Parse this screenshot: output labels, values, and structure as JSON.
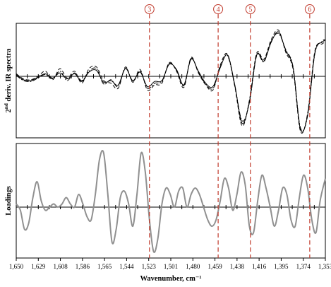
{
  "chart_data": [
    {
      "type": "line",
      "panel": "top",
      "ylabel_main": "2",
      "ylabel_sup": "nd",
      "ylabel_rest": " deriv. IR spectra",
      "x_range": [
        1353,
        1650
      ],
      "x_reversed": true,
      "zero_line": true,
      "series": [
        {
          "style": "solid",
          "color": "#000000",
          "x": [
            1650,
            1643,
            1636,
            1629,
            1622,
            1615,
            1608,
            1601,
            1594,
            1587,
            1580,
            1573,
            1566,
            1559,
            1552,
            1545,
            1538,
            1531,
            1524,
            1517,
            1510,
            1503,
            1496,
            1489,
            1482,
            1475,
            1468,
            1461,
            1454,
            1447,
            1440,
            1433,
            1426,
            1419,
            1412,
            1405,
            1398,
            1391,
            1384,
            1377,
            1370,
            1363,
            1356,
            1353
          ],
          "y": [
            0.02,
            -0.04,
            -0.05,
            -0.01,
            0.03,
            -0.02,
            0.04,
            -0.03,
            0.03,
            -0.06,
            0.05,
            0.07,
            -0.07,
            -0.05,
            -0.1,
            0.09,
            -0.05,
            0.05,
            -0.12,
            -0.06,
            -0.05,
            0.14,
            0.08,
            -0.1,
            0.2,
            0.06,
            -0.08,
            -0.12,
            0.1,
            0.25,
            -0.1,
            -0.55,
            -0.3,
            0.25,
            0.18,
            0.4,
            0.52,
            0.3,
            0.1,
            -0.62,
            -0.45,
            0.28,
            0.4,
            0.42
          ]
        },
        {
          "style": "dashed",
          "color": "#000000",
          "x": [
            1650,
            1643,
            1636,
            1629,
            1622,
            1615,
            1608,
            1601,
            1594,
            1587,
            1580,
            1573,
            1566,
            1559,
            1552,
            1545,
            1538,
            1531,
            1524,
            1517,
            1510,
            1503,
            1496,
            1489,
            1482,
            1475,
            1468,
            1461,
            1454,
            1447,
            1440,
            1433,
            1426,
            1419,
            1412,
            1405,
            1398,
            1391,
            1384,
            1377,
            1370,
            1363,
            1356,
            1353
          ],
          "y": [
            0.03,
            -0.03,
            -0.04,
            0.0,
            0.06,
            -0.04,
            0.09,
            -0.02,
            0.06,
            -0.08,
            0.09,
            0.11,
            -0.05,
            -0.08,
            -0.14,
            0.11,
            -0.07,
            0.08,
            -0.16,
            -0.1,
            -0.08,
            0.16,
            0.06,
            -0.13,
            0.22,
            0.04,
            -0.1,
            -0.16,
            0.13,
            0.26,
            -0.12,
            -0.58,
            -0.28,
            0.27,
            0.2,
            0.43,
            0.54,
            0.28,
            0.08,
            -0.64,
            -0.43,
            0.3,
            0.38,
            0.4
          ]
        },
        {
          "style": "dashdot",
          "color": "#000000",
          "x": [
            1650,
            1643,
            1636,
            1629,
            1622,
            1615,
            1608,
            1601,
            1594,
            1587,
            1580,
            1573,
            1566,
            1559,
            1552,
            1545,
            1538,
            1531,
            1524,
            1517,
            1510,
            1503,
            1496,
            1489,
            1482,
            1475,
            1468,
            1461,
            1454,
            1447,
            1440,
            1433,
            1426,
            1419,
            1412,
            1405,
            1398,
            1391,
            1384,
            1377,
            1370,
            1363,
            1356,
            1353
          ],
          "y": [
            0.01,
            -0.05,
            -0.06,
            -0.02,
            0.02,
            -0.03,
            0.06,
            -0.05,
            0.04,
            -0.05,
            0.06,
            0.09,
            -0.09,
            -0.04,
            -0.12,
            0.1,
            -0.06,
            0.06,
            -0.14,
            -0.08,
            -0.06,
            0.15,
            0.07,
            -0.11,
            0.21,
            0.05,
            -0.09,
            -0.14,
            0.11,
            0.24,
            -0.11,
            -0.52,
            -0.31,
            0.24,
            0.17,
            0.41,
            0.5,
            0.31,
            0.11,
            -0.6,
            -0.46,
            0.27,
            0.41,
            0.43
          ]
        }
      ],
      "ylim": [
        -0.72,
        0.62
      ]
    },
    {
      "type": "line",
      "panel": "bottom",
      "ylabel": "Loadings",
      "xlabel": "Wavenumber, cm⁻¹",
      "x_range": [
        1353,
        1650
      ],
      "x_reversed": true,
      "zero_line": true,
      "x_ticks": [
        "1,650",
        "1,629",
        "1,608",
        "1,586",
        "1,565",
        "1,544",
        "1,523",
        "1,501",
        "1,480",
        "1,459",
        "1,438",
        "1,416",
        "1,395",
        "1,374",
        "1,353"
      ],
      "series": [
        {
          "style": "solid",
          "color": "#909090",
          "x": [
            1650,
            1646,
            1642,
            1638,
            1634,
            1630,
            1626,
            1622,
            1618,
            1614,
            1610,
            1606,
            1602,
            1598,
            1594,
            1590,
            1586,
            1582,
            1578,
            1574,
            1570,
            1566,
            1562,
            1558,
            1554,
            1550,
            1546,
            1542,
            1538,
            1534,
            1530,
            1526,
            1522,
            1518,
            1514,
            1510,
            1506,
            1502,
            1498,
            1494,
            1490,
            1486,
            1482,
            1478,
            1474,
            1470,
            1466,
            1462,
            1458,
            1454,
            1450,
            1446,
            1442,
            1438,
            1434,
            1430,
            1426,
            1422,
            1418,
            1414,
            1410,
            1406,
            1402,
            1398,
            1394,
            1390,
            1386,
            1382,
            1378,
            1374,
            1370,
            1366,
            1362,
            1358,
            1353
          ],
          "y": [
            0.05,
            -0.05,
            -0.35,
            -0.25,
            0.15,
            0.4,
            0.1,
            -0.05,
            0.0,
            0.05,
            0.0,
            0.05,
            0.15,
            0.05,
            0.0,
            0.2,
            0.05,
            -0.15,
            -0.2,
            0.2,
            0.75,
            0.85,
            0.2,
            -0.55,
            -0.35,
            0.15,
            0.25,
            0.05,
            -0.3,
            0.2,
            0.85,
            0.55,
            -0.2,
            -0.7,
            -0.5,
            0.05,
            0.3,
            0.2,
            0.0,
            0.25,
            0.3,
            0.0,
            0.2,
            0.3,
            0.2,
            0.0,
            -0.2,
            -0.3,
            -0.2,
            0.1,
            0.45,
            0.3,
            -0.05,
            0.2,
            0.55,
            0.35,
            -0.3,
            -0.4,
            0.1,
            0.5,
            0.3,
            0.0,
            -0.3,
            -0.05,
            0.3,
            0.2,
            -0.2,
            -0.3,
            0.15,
            0.5,
            0.3,
            -0.2,
            -0.4,
            0.1,
            0.45
          ]
        }
      ],
      "ylim": [
        -0.8,
        1.0
      ]
    }
  ],
  "markers": [
    {
      "label": "3",
      "wavenumber": 1522
    },
    {
      "label": "4",
      "wavenumber": 1456
    },
    {
      "label": "5",
      "wavenumber": 1425
    },
    {
      "label": "6",
      "wavenumber": 1368
    }
  ],
  "colors": {
    "marker": "#c0392b",
    "axis": "#000000",
    "loadings": "#909090"
  }
}
